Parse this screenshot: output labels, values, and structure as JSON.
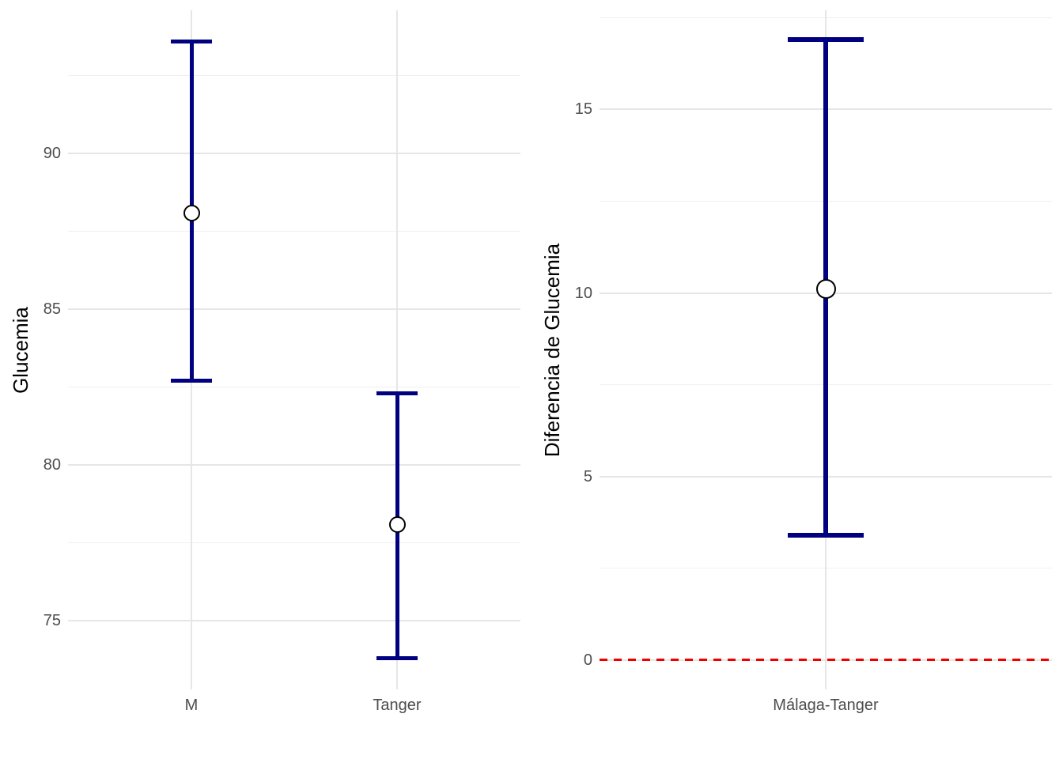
{
  "style": {
    "background": "#FFFFFF",
    "errorbar_color": "#000080",
    "point_fill": "#FFFFFF",
    "point_border": "#000000",
    "grid_major_color": "#E6E6E6",
    "grid_minor_color": "#F0F0F0",
    "tick_label_color": "#4D4D4D",
    "axis_title_color": "#000000",
    "reference_line_color": "#EE0000"
  },
  "chart_data": [
    {
      "type": "errorbar",
      "title": "",
      "xlabel": "",
      "ylabel": "Glucemia",
      "categories": [
        "M",
        "Tanger"
      ],
      "points": [
        {
          "category": "M",
          "mean": 88.1,
          "lower": 82.7,
          "upper": 93.6
        },
        {
          "category": "Tanger",
          "mean": 78.1,
          "lower": 73.8,
          "upper": 82.3
        }
      ],
      "ylim": [
        72.8,
        94.6
      ],
      "yticks_major": [
        75,
        80,
        85,
        90
      ],
      "yticks_minor": [
        77.5,
        82.5,
        87.5,
        92.5
      ],
      "grid": true,
      "legend": "none"
    },
    {
      "type": "errorbar",
      "title": "",
      "xlabel": "",
      "ylabel": "Diferencia de Glucemia",
      "categories": [
        "Málaga-Tanger"
      ],
      "points": [
        {
          "category": "Málaga-Tanger",
          "mean": 10.1,
          "lower": 3.4,
          "upper": 16.9
        }
      ],
      "ylim": [
        -0.8,
        17.7
      ],
      "yticks_major": [
        0,
        5,
        10,
        15
      ],
      "yticks_minor": [
        2.5,
        7.5,
        12.5,
        17.5
      ],
      "reference_line": {
        "y": 0,
        "style": "dashed",
        "color": "#EE0000"
      },
      "grid": true,
      "legend": "none"
    }
  ]
}
